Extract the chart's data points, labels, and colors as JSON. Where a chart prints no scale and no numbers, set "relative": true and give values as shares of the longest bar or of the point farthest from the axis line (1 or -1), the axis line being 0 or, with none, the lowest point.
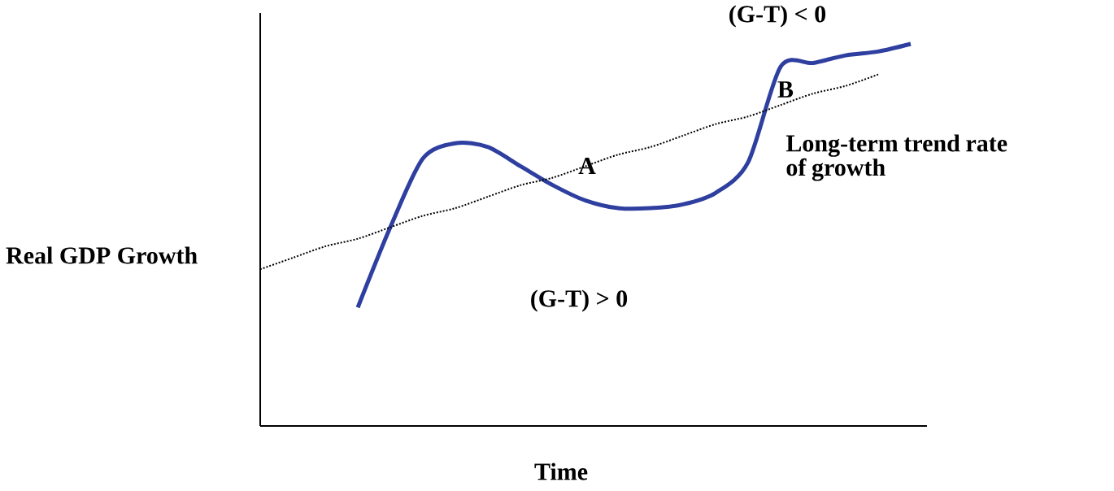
{
  "chart_data": {
    "type": "line",
    "relative": true,
    "xlabel": "Time",
    "ylabel": "Real GDP Growth",
    "categories": [
      null,
      null,
      null,
      null,
      null,
      null,
      null,
      null,
      null,
      null,
      null,
      null,
      null,
      null,
      null,
      null,
      null,
      null,
      null,
      null,
      null
    ],
    "series": [
      {
        "color": "#2e3fa0",
        "line_style": "solid",
        "values": [
          null,
          null,
          null,
          0.31,
          0.52,
          0.7,
          0.74,
          0.73,
          0.68,
          0.63,
          0.59,
          0.57,
          0.57,
          0.58,
          0.61,
          0.69,
          0.94,
          0.95,
          0.97,
          0.98,
          1.0
        ]
      },
      {
        "color": "#000000",
        "line_style": "dotted",
        "values": [
          0.41,
          0.44,
          0.47,
          0.49,
          0.52,
          0.55,
          0.57,
          0.6,
          0.63,
          0.65,
          0.68,
          0.71,
          0.73,
          0.76,
          0.79,
          0.81,
          0.84,
          0.87,
          0.89,
          0.92,
          null
        ]
      }
    ],
    "annotations": [
      "(G-T) < 0",
      "B",
      "Long-term trend rate of growth",
      "A",
      "(G-T) > 0"
    ],
    "marker": "none"
  }
}
